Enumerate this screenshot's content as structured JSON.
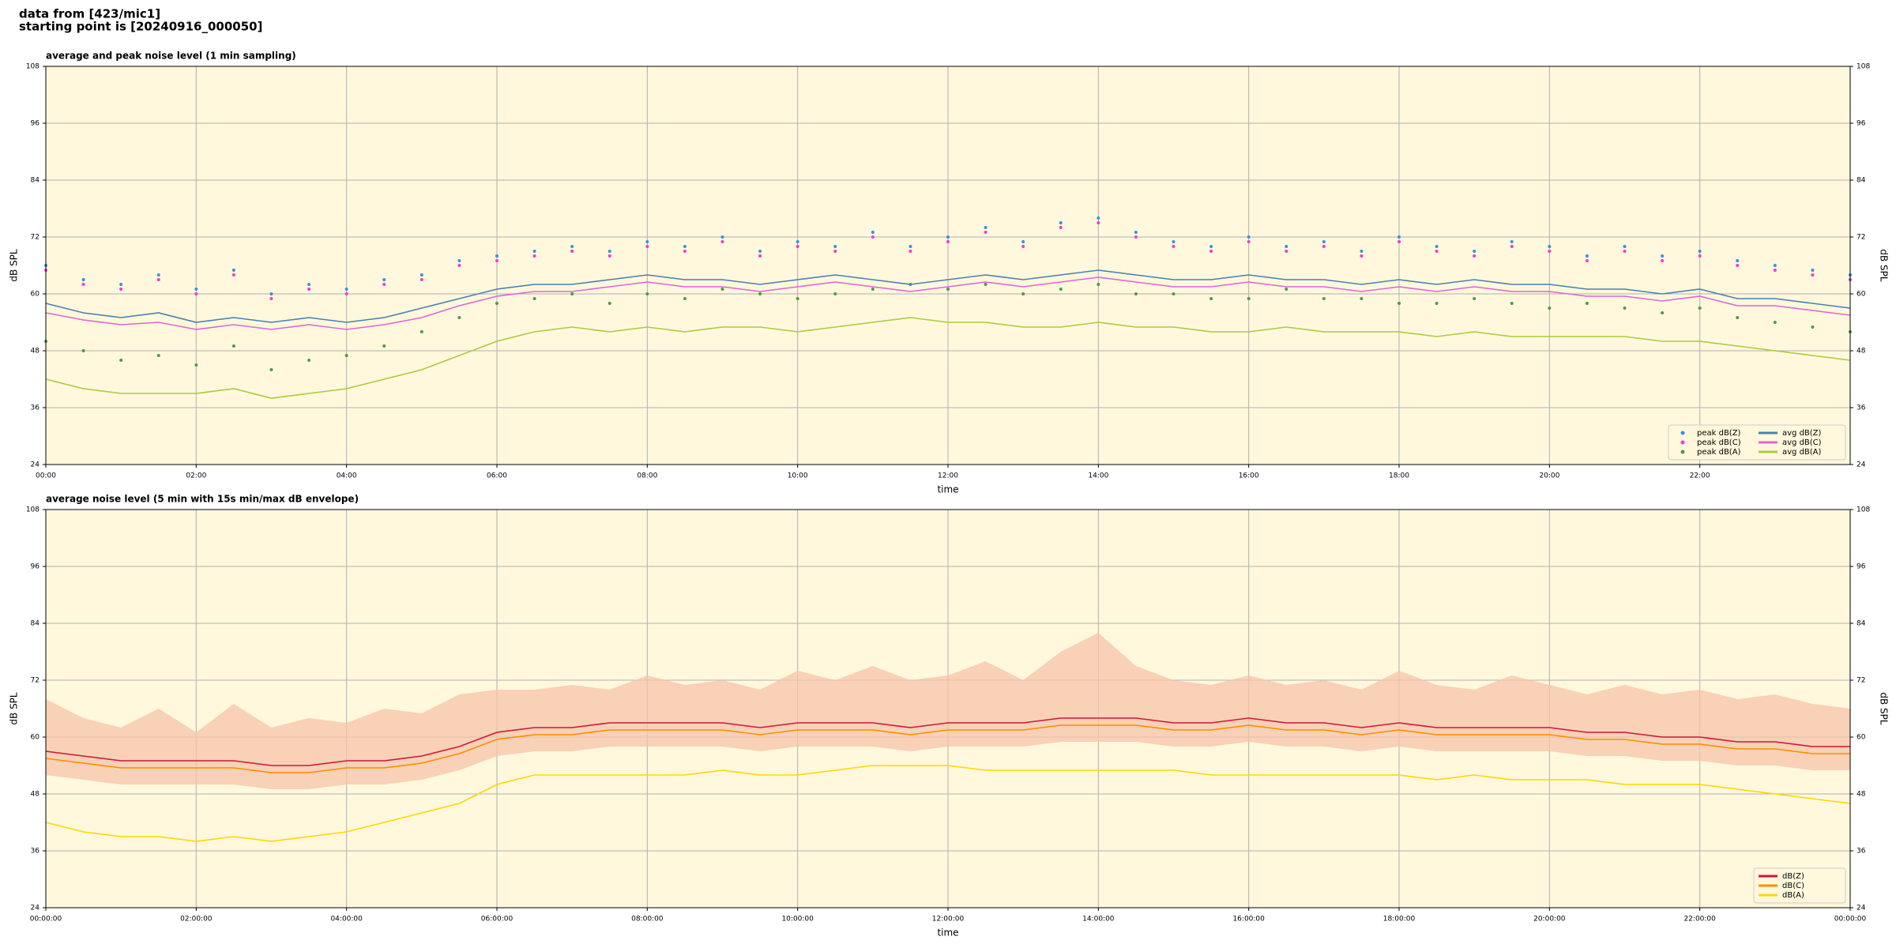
{
  "header": {
    "lines": [
      "data from [423/mic1]",
      "starting point is [20240916_000050]"
    ]
  },
  "chart_data": [
    {
      "type": "line",
      "title": "average and peak noise level (1 min sampling)",
      "xlabel": "time",
      "ylabel": "dB SPL",
      "xlim": [
        0,
        24
      ],
      "ylim": [
        24,
        108
      ],
      "yticks": [
        24,
        36,
        48,
        60,
        72,
        84,
        96,
        108
      ],
      "xticks": [
        {
          "value": 0,
          "label": "00:00"
        },
        {
          "value": 2,
          "label": "02:00"
        },
        {
          "value": 4,
          "label": "04:00"
        },
        {
          "value": 6,
          "label": "06:00"
        },
        {
          "value": 8,
          "label": "08:00"
        },
        {
          "value": 10,
          "label": "10:00"
        },
        {
          "value": 12,
          "label": "12:00"
        },
        {
          "value": 14,
          "label": "14:00"
        },
        {
          "value": 16,
          "label": "16:00"
        },
        {
          "value": 18,
          "label": "18:00"
        },
        {
          "value": 20,
          "label": "20:00"
        },
        {
          "value": 22,
          "label": "22:00"
        }
      ],
      "grid": true,
      "legend": "lower right",
      "legend_columns": 2,
      "x": [
        0,
        0.5,
        1,
        1.5,
        2,
        2.5,
        3,
        3.5,
        4,
        4.5,
        5,
        5.5,
        6,
        6.5,
        7,
        7.5,
        8,
        8.5,
        9,
        9.5,
        10,
        10.5,
        11,
        11.5,
        12,
        12.5,
        13,
        13.5,
        14,
        14.5,
        15,
        15.5,
        16,
        16.5,
        17,
        17.5,
        18,
        18.5,
        19,
        19.5,
        20,
        20.5,
        21,
        21.5,
        22,
        22.5,
        23,
        23.5,
        24
      ],
      "series": [
        {
          "name": "peak dB(Z)",
          "mark": "dot",
          "color": "#3a8ee6",
          "values": [
            66,
            63,
            62,
            64,
            61,
            65,
            60,
            62,
            61,
            63,
            64,
            67,
            68,
            69,
            70,
            69,
            71,
            70,
            72,
            69,
            71,
            70,
            73,
            70,
            72,
            74,
            71,
            75,
            76,
            73,
            71,
            70,
            72,
            70,
            71,
            69,
            72,
            70,
            69,
            71,
            70,
            68,
            70,
            68,
            69,
            67,
            66,
            65,
            64
          ]
        },
        {
          "name": "peak dB(C)",
          "mark": "dot",
          "color": "#f03cd2",
          "values": [
            65,
            62,
            61,
            63,
            60,
            64,
            59,
            61,
            60,
            62,
            63,
            66,
            67,
            68,
            69,
            68,
            70,
            69,
            71,
            68,
            70,
            69,
            72,
            69,
            71,
            73,
            70,
            74,
            75,
            72,
            70,
            69,
            71,
            69,
            70,
            68,
            71,
            69,
            68,
            70,
            69,
            67,
            69,
            67,
            68,
            66,
            65,
            64,
            63
          ]
        },
        {
          "name": "peak dB(A)",
          "mark": "dot",
          "color": "#4f9a4a",
          "values": [
            50,
            48,
            46,
            47,
            45,
            49,
            44,
            46,
            47,
            49,
            52,
            55,
            58,
            59,
            60,
            58,
            60,
            59,
            61,
            60,
            59,
            60,
            61,
            62,
            61,
            62,
            60,
            61,
            62,
            60,
            60,
            59,
            59,
            61,
            59,
            59,
            58,
            58,
            59,
            58,
            57,
            58,
            57,
            56,
            57,
            55,
            54,
            53,
            52
          ]
        },
        {
          "name": "avg dB(Z)",
          "mark": "line",
          "color": "#4a7fb0",
          "values": [
            58,
            56,
            55,
            56,
            54,
            55,
            54,
            55,
            54,
            55,
            57,
            59,
            61,
            62,
            62,
            63,
            64,
            63,
            63,
            62,
            63,
            64,
            63,
            62,
            63,
            64,
            63,
            64,
            65,
            64,
            63,
            63,
            64,
            63,
            63,
            62,
            63,
            62,
            63,
            62,
            62,
            61,
            61,
            60,
            61,
            59,
            59,
            58,
            57
          ]
        },
        {
          "name": "avg dB(C)",
          "mark": "line",
          "color": "#e064d4",
          "values": [
            56,
            54.5,
            53.5,
            54,
            52.5,
            53.5,
            52.5,
            53.5,
            52.5,
            53.5,
            55,
            57.5,
            59.5,
            60.5,
            60.5,
            61.5,
            62.5,
            61.5,
            61.5,
            60.5,
            61.5,
            62.5,
            61.5,
            60.5,
            61.5,
            62.5,
            61.5,
            62.5,
            63.5,
            62.5,
            61.5,
            61.5,
            62.5,
            61.5,
            61.5,
            60.5,
            61.5,
            60.5,
            61.5,
            60.5,
            60.5,
            59.5,
            59.5,
            58.5,
            59.5,
            57.5,
            57.5,
            56.5,
            55.5
          ]
        },
        {
          "name": "avg dB(A)",
          "mark": "line",
          "color": "#a8cc3c",
          "values": [
            42,
            40,
            39,
            39,
            39,
            40,
            38,
            39,
            40,
            42,
            44,
            47,
            50,
            52,
            53,
            52,
            53,
            52,
            53,
            53,
            52,
            53,
            54,
            55,
            54,
            54,
            53,
            53,
            54,
            53,
            53,
            52,
            52,
            53,
            52,
            52,
            52,
            51,
            52,
            51,
            51,
            51,
            51,
            50,
            50,
            49,
            48,
            47,
            46
          ]
        }
      ]
    },
    {
      "type": "line",
      "title": "average noise level (5 min with 15s min/max dB envelope)",
      "xlabel": "time",
      "ylabel": "dB SPL",
      "xlim": [
        0,
        24
      ],
      "ylim": [
        24,
        108
      ],
      "yticks": [
        24,
        36,
        48,
        60,
        72,
        84,
        96,
        108
      ],
      "xticks": [
        {
          "value": 0,
          "label": "00:00:00"
        },
        {
          "value": 2,
          "label": "02:00:00"
        },
        {
          "value": 4,
          "label": "04:00:00"
        },
        {
          "value": 6,
          "label": "06:00:00"
        },
        {
          "value": 8,
          "label": "08:00:00"
        },
        {
          "value": 10,
          "label": "10:00:00"
        },
        {
          "value": 12,
          "label": "12:00:00"
        },
        {
          "value": 14,
          "label": "14:00:00"
        },
        {
          "value": 16,
          "label": "16:00:00"
        },
        {
          "value": 18,
          "label": "18:00:00"
        },
        {
          "value": 20,
          "label": "20:00:00"
        },
        {
          "value": 22,
          "label": "22:00:00"
        },
        {
          "value": 24,
          "label": "00:00:00"
        }
      ],
      "grid": true,
      "legend": "lower right",
      "legend_columns": 1,
      "x": [
        0,
        0.5,
        1,
        1.5,
        2,
        2.5,
        3,
        3.5,
        4,
        4.5,
        5,
        5.5,
        6,
        6.5,
        7,
        7.5,
        8,
        8.5,
        9,
        9.5,
        10,
        10.5,
        11,
        11.5,
        12,
        12.5,
        13,
        13.5,
        14,
        14.5,
        15,
        15.5,
        16,
        16.5,
        17,
        17.5,
        18,
        18.5,
        19,
        19.5,
        20,
        20.5,
        21,
        21.5,
        22,
        22.5,
        23,
        23.5,
        24
      ],
      "envelope": {
        "color": "#f6c4aa",
        "low": [
          52,
          51,
          50,
          50,
          50,
          50,
          49,
          49,
          50,
          50,
          51,
          53,
          56,
          57,
          57,
          58,
          58,
          58,
          58,
          57,
          58,
          58,
          58,
          57,
          58,
          58,
          58,
          59,
          59,
          59,
          58,
          58,
          59,
          58,
          58,
          57,
          58,
          57,
          57,
          57,
          57,
          56,
          56,
          55,
          55,
          54,
          54,
          53,
          53
        ],
        "high": [
          68,
          64,
          62,
          66,
          61,
          67,
          62,
          64,
          63,
          66,
          65,
          69,
          70,
          70,
          71,
          70,
          73,
          71,
          72,
          70,
          74,
          72,
          75,
          72,
          73,
          76,
          72,
          78,
          82,
          75,
          72,
          71,
          73,
          71,
          72,
          70,
          74,
          71,
          70,
          73,
          71,
          69,
          71,
          69,
          70,
          68,
          69,
          67,
          66
        ]
      },
      "series": [
        {
          "name": "dB(Z)",
          "mark": "line",
          "color": "#d0143c",
          "values": [
            57,
            56,
            55,
            55,
            55,
            55,
            54,
            54,
            55,
            55,
            56,
            58,
            61,
            62,
            62,
            63,
            63,
            63,
            63,
            62,
            63,
            63,
            63,
            62,
            63,
            63,
            63,
            64,
            64,
            64,
            63,
            63,
            64,
            63,
            63,
            62,
            63,
            62,
            62,
            62,
            62,
            61,
            61,
            60,
            60,
            59,
            59,
            58,
            58
          ]
        },
        {
          "name": "dB(C)",
          "mark": "line",
          "color": "#ff8c00",
          "values": [
            55.5,
            54.5,
            53.5,
            53.5,
            53.5,
            53.5,
            52.5,
            52.5,
            53.5,
            53.5,
            54.5,
            56.5,
            59.5,
            60.5,
            60.5,
            61.5,
            61.5,
            61.5,
            61.5,
            60.5,
            61.5,
            61.5,
            61.5,
            60.5,
            61.5,
            61.5,
            61.5,
            62.5,
            62.5,
            62.5,
            61.5,
            61.5,
            62.5,
            61.5,
            61.5,
            60.5,
            61.5,
            60.5,
            60.5,
            60.5,
            60.5,
            59.5,
            59.5,
            58.5,
            58.5,
            57.5,
            57.5,
            56.5,
            56.5
          ]
        },
        {
          "name": "dB(A)",
          "mark": "line",
          "color": "#ffd700",
          "values": [
            42,
            40,
            39,
            39,
            38,
            39,
            38,
            39,
            40,
            42,
            44,
            46,
            50,
            52,
            52,
            52,
            52,
            52,
            53,
            52,
            52,
            53,
            54,
            54,
            54,
            53,
            53,
            53,
            53,
            53,
            53,
            52,
            52,
            52,
            52,
            52,
            52,
            51,
            52,
            51,
            51,
            51,
            50,
            50,
            50,
            49,
            48,
            47,
            46
          ]
        }
      ]
    }
  ]
}
